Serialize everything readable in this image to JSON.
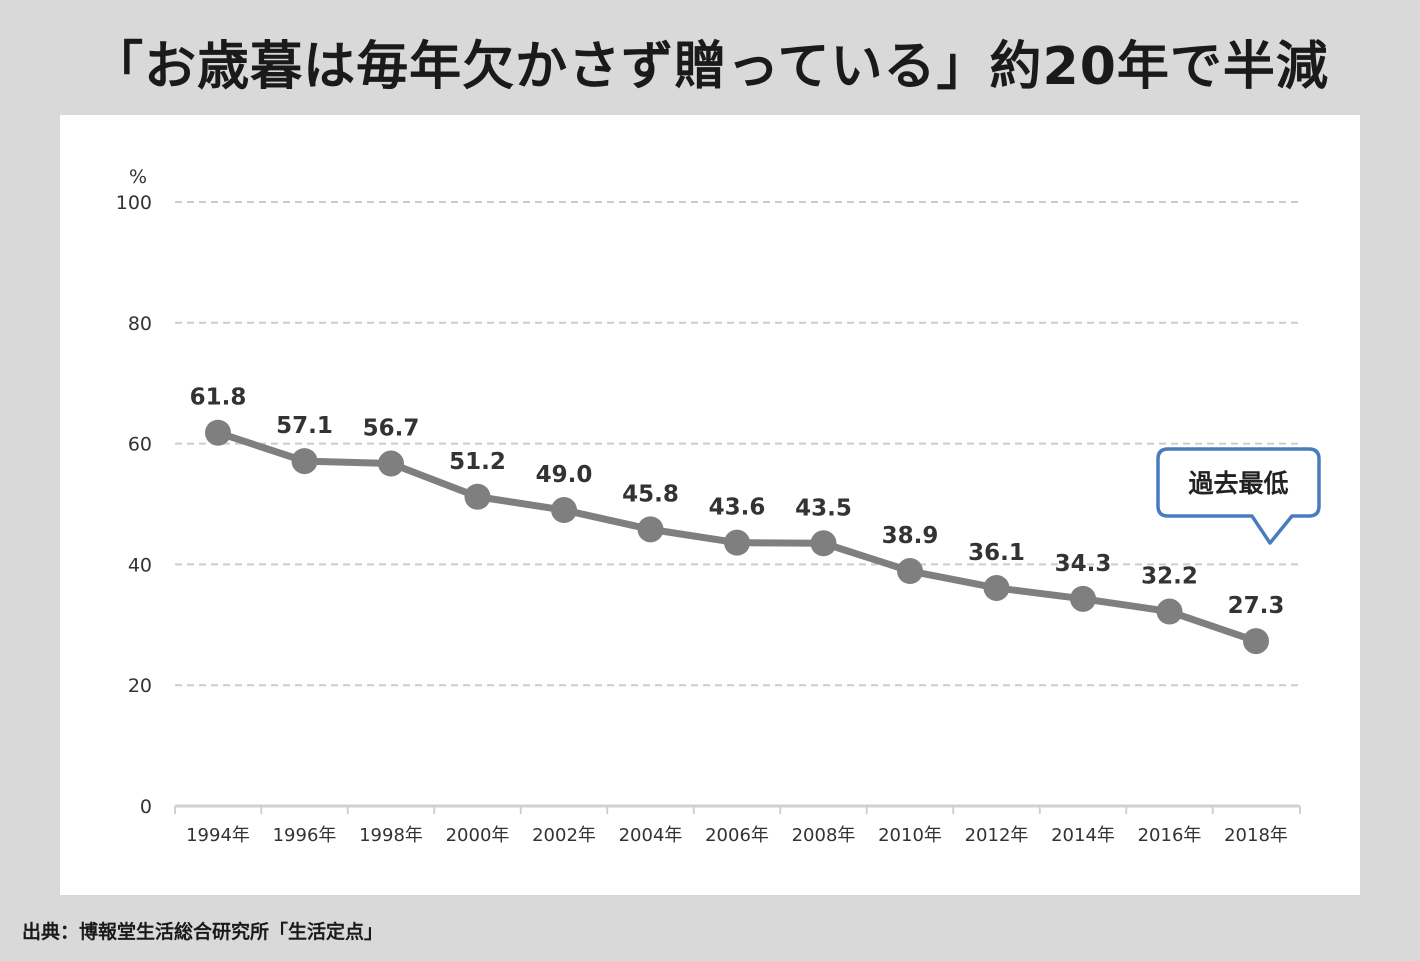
{
  "title": "「お歳暮は毎年欠かさず贈っている」約20年で半減",
  "source": "出典：博報堂生活総合研究所「生活定点」",
  "chart_data": {
    "type": "line",
    "title": "「お歳暮は毎年欠かさず贈っている」約20年で半減",
    "ylabel": "%",
    "xlabel": "",
    "ylim": [
      0,
      100
    ],
    "yticks": [
      0,
      20,
      40,
      60,
      80,
      100
    ],
    "grid": true,
    "categories": [
      "1994年",
      "1996年",
      "1998年",
      "2000年",
      "2002年",
      "2004年",
      "2006年",
      "2008年",
      "2010年",
      "2012年",
      "2014年",
      "2016年",
      "2018年"
    ],
    "series": [
      {
        "name": "お歳暮は毎年欠かさず贈っている",
        "values": [
          61.8,
          57.1,
          56.7,
          51.2,
          49.0,
          45.8,
          43.6,
          43.5,
          38.9,
          36.1,
          34.3,
          32.2,
          27.3
        ]
      }
    ],
    "data_labels": [
      "61.8",
      "57.1",
      "56.7",
      "51.2",
      "49.0",
      "45.8",
      "43.6",
      "43.5",
      "38.9",
      "36.1",
      "34.3",
      "32.2",
      "27.3"
    ],
    "annotation": {
      "text": "過去最低",
      "target_index": 12
    },
    "colors": {
      "line": "#7f7f7f",
      "callout_border": "#4a7bbd",
      "grid": "#cccccc"
    }
  }
}
